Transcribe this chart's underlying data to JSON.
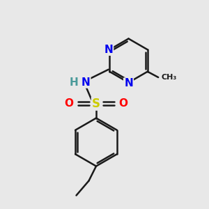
{
  "bg_color": "#e8e8e8",
  "bond_color": "#1a1a1a",
  "bond_width": 1.8,
  "atom_colors": {
    "N": "#0000ee",
    "S": "#cccc00",
    "O": "#ff0000",
    "H": "#4a9a9a",
    "C": "#1a1a1a"
  },
  "font_size": 11,
  "font_size_small": 9,
  "xlim": [
    0,
    10
  ],
  "ylim": [
    0,
    10
  ]
}
